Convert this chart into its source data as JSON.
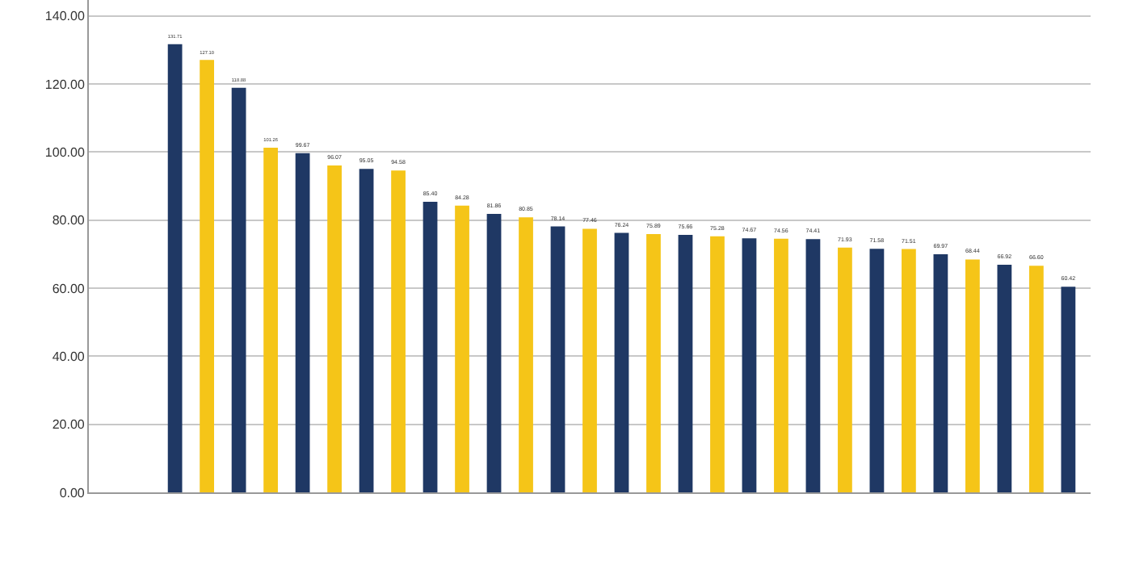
{
  "chart_data": {
    "type": "bar",
    "categories": [
      null,
      null,
      null,
      null,
      null,
      null,
      null,
      null,
      null,
      null,
      null,
      null,
      null,
      null,
      null,
      null,
      null,
      null,
      null,
      null,
      null,
      null,
      null,
      null,
      null,
      null,
      null,
      null,
      null,
      null,
      null
    ],
    "values": [
      null,
      null,
      131.71,
      127.1,
      118.88,
      101.26,
      99.67,
      96.07,
      95.05,
      94.58,
      85.4,
      84.28,
      81.86,
      80.85,
      78.14,
      77.46,
      76.24,
      75.89,
      75.66,
      75.28,
      74.67,
      74.56,
      74.41,
      71.93,
      71.58,
      71.51,
      69.97,
      68.44,
      66.92,
      66.6,
      60.42
    ],
    "value_labels": [
      null,
      null,
      "131.71",
      "127.10",
      "118.88",
      "101.26",
      "99.67",
      "96.07",
      "95.05",
      "94.58",
      "85.40",
      "84.28",
      "81.86",
      "80.85",
      "78.14",
      "77.46",
      "76.24",
      "75.89",
      "75.66",
      "75.28",
      "74.67",
      "74.56",
      "74.41",
      "71.93",
      "71.58",
      "71.51",
      "69.97",
      "68.44",
      "66.92",
      "66.60",
      "60.42"
    ],
    "colors": [
      "#1f3864",
      "#f5c518",
      "#1f3864",
      "#f5c518",
      "#1f3864",
      "#f5c518",
      "#1f3864",
      "#f5c518",
      "#1f3864",
      "#f5c518",
      "#1f3864",
      "#f5c518",
      "#1f3864",
      "#f5c518",
      "#1f3864",
      "#f5c518",
      "#1f3864",
      "#f5c518",
      "#1f3864",
      "#f5c518",
      "#1f3864",
      "#f5c518",
      "#1f3864",
      "#f5c518",
      "#1f3864",
      "#f5c518",
      "#1f3864",
      "#f5c518",
      "#1f3864",
      "#f5c518",
      "#1f3864"
    ],
    "ylim": [
      0,
      144.7
    ],
    "yticks": [
      {
        "value": 0,
        "label": "0.00"
      },
      {
        "value": 20,
        "label": "20.00"
      },
      {
        "value": 40,
        "label": "40.00"
      },
      {
        "value": 60,
        "label": "60.00"
      },
      {
        "value": 80,
        "label": "80.00"
      },
      {
        "value": 100,
        "label": "100.00"
      },
      {
        "value": 120,
        "label": "120.00"
      },
      {
        "value": 140,
        "label": "140.00"
      }
    ],
    "grid": "y"
  }
}
